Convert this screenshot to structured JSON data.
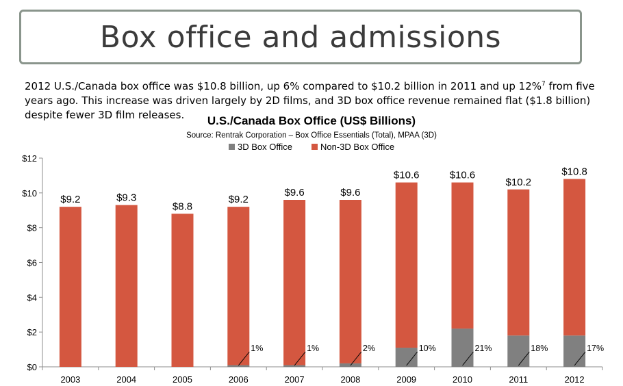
{
  "slide": {
    "title": "Box office and admissions",
    "intro_part1": "2012 U.S./Canada box office was $10.8 billion, up 6% compared to $10.2 billion in 2011 and up 12%",
    "intro_sup": "7",
    "intro_part2": " from five years ago. This increase was driven largely by 2D films, and 3D box office revenue remained flat ($1.8 billion) despite fewer 3D film releases."
  },
  "chart_data": {
    "type": "bar",
    "stacked": true,
    "title": "U.S./Canada Box Office (US$ Billions)",
    "subtitle": "Source: Rentrak Corporation – Box Office Essentials (Total), MPAA (3D)",
    "categories": [
      "2003",
      "2004",
      "2005",
      "2006",
      "2007",
      "2008",
      "2009",
      "2010",
      "2011",
      "2012"
    ],
    "series": [
      {
        "name": "3D Box Office",
        "color": "#808080",
        "values": [
          0,
          0,
          0,
          0.1,
          0.1,
          0.2,
          1.1,
          2.2,
          1.8,
          1.8
        ]
      },
      {
        "name": "Non-3D Box Office",
        "color": "#d45740",
        "values": [
          9.2,
          9.3,
          8.8,
          9.1,
          9.5,
          9.4,
          9.5,
          8.4,
          8.4,
          9.0
        ]
      }
    ],
    "total_labels": [
      "$9.2",
      "$9.3",
      "$8.8",
      "$9.2",
      "$9.6",
      "$9.6",
      "$10.6",
      "$10.6",
      "$10.2",
      "$10.8"
    ],
    "pct_labels": [
      "",
      "",
      "",
      "1%",
      "1%",
      "2%",
      "10%",
      "21%",
      "18%",
      "17%"
    ],
    "y_ticks": [
      "$0",
      "$2",
      "$4",
      "$6",
      "$8",
      "$10",
      "$12"
    ],
    "ylim": [
      0,
      12
    ],
    "legend_position": "top",
    "grid": false
  }
}
